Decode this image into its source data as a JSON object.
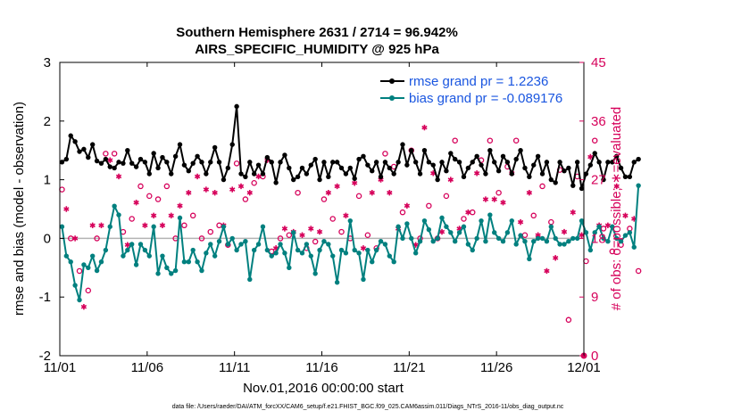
{
  "chart_data": {
    "type": "line",
    "title_line1": "Southern Hemisphere 2631 / 2714 = 96.942%",
    "title_line2": "AIRS_SPECIFIC_HUMIDITY @ 925 hPa",
    "xlabel": "Nov.01,2016 00:00:00 start",
    "ylabel_left": "rmse and bias (model - observation)",
    "ylabel_right": "# of obs: o=possible; ∗=evaluated",
    "footnote": "data file: /Users/raeder/DAI/ATM_forcXX/CAM6_setup/f.e21.FHIST_BGC.f09_025.CAM6assim.011/Diags_NTrS_2016-11/obs_diag_output.nc",
    "x_ticks": [
      {
        "value": 0,
        "label": "11/01"
      },
      {
        "value": 5,
        "label": "11/06"
      },
      {
        "value": 10,
        "label": "11/11"
      },
      {
        "value": 15,
        "label": "11/16"
      },
      {
        "value": 20,
        "label": "11/21"
      },
      {
        "value": 25,
        "label": "11/26"
      },
      {
        "value": 30,
        "label": "12/01"
      }
    ],
    "xlim": [
      0,
      30
    ],
    "ylim_left": [
      -2,
      3
    ],
    "yticks_left": [
      "-2",
      "-1",
      "0",
      "1",
      "2",
      "3"
    ],
    "ylim_right": [
      0,
      45
    ],
    "yticks_right": [
      "0",
      "9",
      "18",
      "27",
      "36",
      "45"
    ],
    "legend": {
      "rmse_label": "rmse grand pr = 1.2236",
      "bias_label": "bias grand pr = -0.089176",
      "position": "top-right"
    },
    "colors": {
      "rmse": "#000000",
      "bias": "#00807f",
      "obs": "#d6005a",
      "zero_line": "#b3b3b3",
      "legend_text": "#1a56e0"
    },
    "x_step": 0.25,
    "series": [
      {
        "name": "rmse",
        "values": [
          1.3,
          1.35,
          1.75,
          1.65,
          1.48,
          1.52,
          1.38,
          1.6,
          1.32,
          1.28,
          1.35,
          1.22,
          1.2,
          1.3,
          1.28,
          1.5,
          1.28,
          1.22,
          1.35,
          1.3,
          1.1,
          1.45,
          1.2,
          1.38,
          1.3,
          1.1,
          1.4,
          1.6,
          1.25,
          1.15,
          1.28,
          1.4,
          1.3,
          1.1,
          1.3,
          1.55,
          1.3,
          1.0,
          1.2,
          1.6,
          2.25,
          1.1,
          1.05,
          1.3,
          1.1,
          1.25,
          1.1,
          1.38,
          1.3,
          0.95,
          1.3,
          1.42,
          1.2,
          1.0,
          1.05,
          1.2,
          1.1,
          1.25,
          1.35,
          1.0,
          1.3,
          1.05,
          1.3,
          1.3,
          1.2,
          1.1,
          1.2,
          1.02,
          1.35,
          1.4,
          1.25,
          1.15,
          1.3,
          1.05,
          1.3,
          1.2,
          1.1,
          1.3,
          1.6,
          1.25,
          1.5,
          1.3,
          1.1,
          1.5,
          1.3,
          1.25,
          1.0,
          1.3,
          1.15,
          1.45,
          1.35,
          1.3,
          1.05,
          1.2,
          1.3,
          1.4,
          1.25,
          1.1,
          1.5,
          1.3,
          1.15,
          1.4,
          1.3,
          1.1,
          1.35,
          1.5,
          1.2,
          1.05,
          1.25,
          1.4,
          1.1,
          1.3,
          1.0,
          0.95,
          1.3,
          1.15,
          1.2,
          0.9,
          1.3,
          0.85,
          1.1,
          1.25,
          1.45,
          1.3,
          1.0,
          1.3,
          1.3,
          1.4,
          1.2,
          1.05,
          1.05,
          1.3,
          1.35
        ],
        "style": "line-with-circle-markers"
      },
      {
        "name": "bias",
        "values": [
          0.2,
          -0.3,
          -0.4,
          -0.8,
          -1.05,
          -0.45,
          -0.5,
          -0.3,
          -0.55,
          -0.4,
          -0.2,
          0.2,
          0.55,
          0.4,
          -0.3,
          -0.2,
          -0.1,
          -0.45,
          -0.1,
          -0.2,
          -0.3,
          0.2,
          -0.6,
          -0.3,
          -0.5,
          -0.6,
          -0.55,
          0.35,
          -0.4,
          -0.4,
          -0.2,
          -0.4,
          -0.55,
          -0.25,
          -0.1,
          -0.3,
          -0.05,
          0.2,
          -0.1,
          0.0,
          -0.2,
          -0.1,
          -0.05,
          -0.7,
          -0.2,
          -0.1,
          0.2,
          -0.2,
          -0.3,
          -0.25,
          -0.1,
          -0.25,
          -0.5,
          0.1,
          -0.2,
          -0.25,
          -0.1,
          -0.3,
          -0.6,
          -0.2,
          -0.05,
          -0.1,
          -0.3,
          -0.75,
          -0.2,
          -0.25,
          0.3,
          -0.2,
          -0.25,
          -0.7,
          -0.2,
          -0.4,
          -0.2,
          -0.05,
          -0.1,
          -0.3,
          -0.4,
          0.2,
          0.0,
          0.25,
          0.0,
          -0.25,
          -0.05,
          0.3,
          0.15,
          -0.05,
          0.0,
          0.35,
          0.2,
          0.1,
          -0.05,
          0.1,
          0.2,
          -0.1,
          -0.2,
          0.0,
          0.3,
          -0.05,
          0.4,
          0.1,
          0.0,
          -0.05,
          0.1,
          0.3,
          -0.1,
          0.05,
          -0.05,
          -0.35,
          -0.05,
          0.0,
          0.0,
          -0.05,
          0.2,
          0.0,
          -0.1,
          -0.1,
          -0.05,
          0.0,
          0.0,
          0.3,
          0.1,
          -0.2,
          0.1,
          0.2,
          0.0,
          -0.05,
          0.2,
          0.0,
          -0.05,
          0.05,
          0.1,
          -0.15,
          0.9
        ],
        "style": "line-with-circle-markers"
      },
      {
        "name": "obs possible",
        "values": [
          25.5,
          24.0,
          18.0,
          18.0,
          13.0,
          8.0,
          10.0,
          20.5,
          18.0,
          21.0,
          31.0,
          32.0,
          31.0,
          29.0,
          19.0,
          17.5,
          21.0,
          24.5,
          26.0,
          20.5,
          24.5,
          22.5,
          24.0,
          21.0,
          26.0,
          23.0,
          18.0,
          24.0,
          20.0,
          26.0,
          21.5,
          29.0,
          18.0,
          27.0,
          19.0,
          26.0,
          20.0,
          21.0,
          17.0,
          27.0,
          29.5,
          27.0,
          24.0,
          26.0,
          26.5,
          29.0,
          27.5,
          32.0,
          16.0,
          17.0,
          18.0,
          20.5,
          18.5,
          20.0,
          25.0,
          19.0,
          16.5,
          20.0,
          17.5,
          20.0,
          24.0,
          26.0,
          21.0,
          27.5,
          19.0,
          22.5,
          18.0,
          28.0,
          24.5,
          17.0,
          18.5,
          26.5,
          16.5,
          28.0,
          31.0,
          26.0,
          29.0,
          20.0,
          22.0,
          24.0,
          31.5,
          17.5,
          18.0,
          36.5,
          23.0,
          29.5,
          18.0,
          19.5,
          24.5,
          28.0,
          33.0,
          20.0,
          21.0,
          23.0,
          22.0,
          29.0,
          30.0,
          25.0,
          33.0,
          25.0,
          25.0,
          24.5,
          29.0,
          29.5,
          33.0,
          21.5,
          18.5,
          26.0,
          21.5,
          19.0,
          26.0,
          14.0,
          20.5,
          16.0,
          28.5,
          19.5,
          5.5,
          23.0,
          27.5,
          19.0,
          14.5,
          32.0,
          33.0,
          21.0,
          19.5,
          21.0,
          16.0,
          27.0,
          17.0,
          22.5,
          19.5,
          21.5,
          13.0
        ],
        "style": "open-circles"
      },
      {
        "name": "obs evaluated",
        "values": [
          24.0,
          22.5,
          18.0,
          18.0,
          12.0,
          7.5,
          9.5,
          20.0,
          17.5,
          20.0,
          29.5,
          30.0,
          30.0,
          27.5,
          18.0,
          17.0,
          20.5,
          23.5,
          24.5,
          20.0,
          23.0,
          21.5,
          22.0,
          20.0,
          24.5,
          21.5,
          17.5,
          23.0,
          19.0,
          25.0,
          20.5,
          27.5,
          17.5,
          25.5,
          18.5,
          25.0,
          19.5,
          20.0,
          16.5,
          25.5,
          28.0,
          26.0,
          23.0,
          25.0,
          25.5,
          27.5,
          26.5,
          30.0,
          15.0,
          16.5,
          17.5,
          19.5,
          18.0,
          19.0,
          24.0,
          18.5,
          16.0,
          19.5,
          17.0,
          19.0,
          23.0,
          25.0,
          20.0,
          26.0,
          18.5,
          21.5,
          17.5,
          26.5,
          23.0,
          16.5,
          18.0,
          25.0,
          16.0,
          27.0,
          29.5,
          25.0,
          28.0,
          19.5,
          21.0,
          23.0,
          30.0,
          17.0,
          17.5,
          35.0,
          22.0,
          28.0,
          17.5,
          19.0,
          23.0,
          27.0,
          31.5,
          19.5,
          20.0,
          22.0,
          21.0,
          28.0,
          29.0,
          24.0,
          31.5,
          24.0,
          24.0,
          23.5,
          27.5,
          28.0,
          32.0,
          20.5,
          18.0,
          25.0,
          21.0,
          18.5,
          25.0,
          13.0,
          20.0,
          15.0,
          27.0,
          19.0,
          5.0,
          22.0,
          26.5,
          18.5,
          14.0,
          30.5,
          32.0,
          20.0,
          19.0,
          20.0,
          15.5,
          26.0,
          16.5,
          21.5,
          19.0,
          21.0,
          12.5
        ],
        "style": "asterisks"
      }
    ]
  }
}
